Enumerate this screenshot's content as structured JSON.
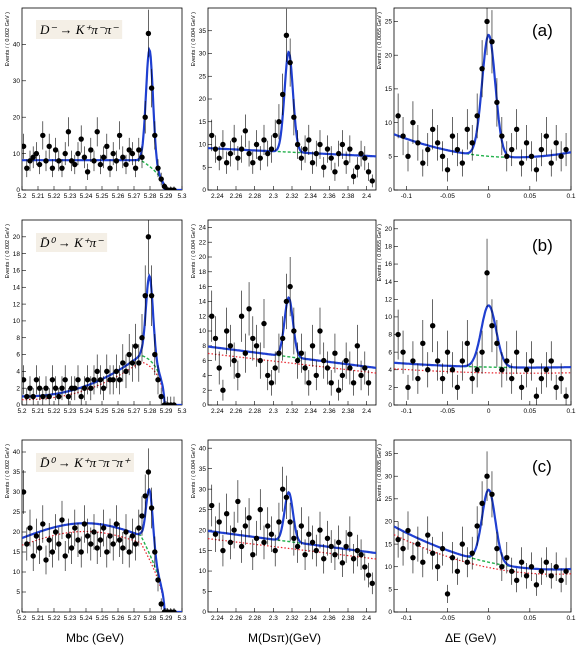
{
  "columns": [
    {
      "xlabel": "Mbc (GeV)",
      "main": "M",
      "sub": "bc",
      "rest": " (GeV)",
      "xlim": [
        5.2,
        5.3
      ],
      "ticks": [
        5.2,
        5.21,
        5.22,
        5.23,
        5.24,
        5.25,
        5.26,
        5.27,
        5.28,
        5.29,
        5.3
      ],
      "tick_labels": [
        "5.2",
        "5.21",
        "5.22",
        "5.23",
        "5.24",
        "5.25",
        "5.26",
        "5.27",
        "5.28",
        "5.29",
        "5.3"
      ]
    },
    {
      "xlabel": "M(Dsπ)(GeV)",
      "main": "M(D",
      "sub": "s",
      "rest": "π )(GeV)",
      "xlim": [
        2.23,
        2.41
      ],
      "ticks": [
        2.24,
        2.26,
        2.28,
        2.3,
        2.32,
        2.34,
        2.36,
        2.38,
        2.4
      ],
      "tick_labels": [
        "2.24",
        "2.26",
        "2.28",
        "2.3",
        "2.32",
        "2.34",
        "2.36",
        "2.38",
        "2.4"
      ]
    },
    {
      "xlabel": "ΔE (GeV)",
      "main": "ΔE (GeV)",
      "sub": "",
      "rest": "",
      "xlim": [
        -0.115,
        0.1
      ],
      "ticks": [
        -0.1,
        -0.05,
        0,
        0.05,
        0.1
      ],
      "tick_labels": [
        "-0.1",
        "-0.05",
        "0",
        "0.05",
        "0.1"
      ]
    }
  ],
  "rows": [
    {
      "letter": "(a)",
      "decay": "D⁻ → K⁺π⁻π⁻",
      "ylabels": [
        "Events / ( 0.002 GeV )",
        "Events / ( 0.004 GeV )",
        "Events / ( 0.0055 GeV )"
      ]
    },
    {
      "letter": "(b)",
      "decay": "D̄⁰ → K⁺π⁻",
      "ylabels": [
        "Events / ( 0.002 GeV )",
        "Events / ( 0.004 GeV )",
        "Events / ( 0.0055 GeV )"
      ]
    },
    {
      "letter": "(c)",
      "decay": "D̄⁰ → K⁺π⁻π⁻π⁺",
      "ylabels": [
        "Events / ( 0.002 GeV )",
        "Events / ( 0.004 GeV )",
        "Events / ( 0.0035 GeV )"
      ]
    }
  ],
  "colors": {
    "signal_fit": "#1f3fd1",
    "background_fit": "#22b14c",
    "background_2": "#e8202a",
    "data": "#000000"
  },
  "chart_data": [
    {
      "type": "scatter",
      "row": 0,
      "col": 0,
      "ylim": [
        0,
        50
      ],
      "yticks": [
        0,
        10,
        20,
        30,
        40
      ],
      "x": [
        5.201,
        5.203,
        5.205,
        5.207,
        5.209,
        5.211,
        5.213,
        5.215,
        5.217,
        5.219,
        5.221,
        5.223,
        5.225,
        5.227,
        5.229,
        5.231,
        5.233,
        5.235,
        5.237,
        5.239,
        5.241,
        5.243,
        5.245,
        5.247,
        5.249,
        5.251,
        5.253,
        5.255,
        5.257,
        5.259,
        5.261,
        5.263,
        5.265,
        5.267,
        5.269,
        5.271,
        5.273,
        5.275,
        5.277,
        5.279,
        5.281,
        5.283,
        5.285,
        5.287,
        5.289,
        5.291,
        5.293,
        5.295
      ],
      "y": [
        12,
        6,
        8,
        9,
        10,
        7,
        15,
        8,
        12,
        6,
        11,
        8,
        6,
        10,
        16,
        8,
        7,
        10,
        14,
        9,
        5,
        11,
        8,
        16,
        7,
        9,
        12,
        6,
        10,
        8,
        15,
        9,
        7,
        11,
        10,
        6,
        11,
        9,
        20,
        43,
        28,
        15,
        6,
        3,
        1,
        0,
        0,
        0
      ],
      "fit": {
        "kind": "mbc",
        "A": 32,
        "mu": 5.2797,
        "sigma": 0.0022,
        "bg": 8.2,
        "x0": 5.289
      },
      "bgfit": {
        "kind": "argus",
        "bg": 8.2,
        "x0": 5.289
      }
    },
    {
      "type": "scatter",
      "row": 0,
      "col": 1,
      "ylim": [
        0,
        40
      ],
      "yticks": [
        0,
        5,
        10,
        15,
        20,
        25,
        30,
        35
      ],
      "x": [
        2.234,
        2.238,
        2.242,
        2.246,
        2.25,
        2.254,
        2.258,
        2.262,
        2.266,
        2.27,
        2.274,
        2.278,
        2.282,
        2.286,
        2.29,
        2.294,
        2.298,
        2.302,
        2.306,
        2.31,
        2.314,
        2.318,
        2.322,
        2.326,
        2.33,
        2.334,
        2.338,
        2.342,
        2.346,
        2.35,
        2.354,
        2.358,
        2.362,
        2.366,
        2.37,
        2.374,
        2.378,
        2.382,
        2.386,
        2.39,
        2.394,
        2.398,
        2.402,
        2.406
      ],
      "y": [
        12,
        9,
        7,
        10,
        6,
        8,
        11,
        7,
        9,
        13,
        8,
        6,
        10,
        7,
        11,
        8,
        9,
        12,
        15,
        21,
        34,
        28,
        16,
        10,
        7,
        9,
        11,
        6,
        8,
        10,
        5,
        9,
        7,
        4,
        8,
        10,
        6,
        9,
        3,
        5,
        8,
        7,
        4,
        2
      ],
      "fit": {
        "kind": "lin",
        "A": 22,
        "mu": 2.3165,
        "sigma": 0.0045,
        "a": 9.2,
        "b": -10
      },
      "bgfit": {
        "kind": "lin",
        "a": 9.2,
        "b": -10
      }
    },
    {
      "type": "scatter",
      "row": 0,
      "col": 2,
      "ylim": [
        0,
        27
      ],
      "yticks": [
        0,
        5,
        10,
        15,
        20,
        25
      ],
      "x": [
        -0.11,
        -0.104,
        -0.098,
        -0.092,
        -0.086,
        -0.08,
        -0.074,
        -0.068,
        -0.062,
        -0.056,
        -0.05,
        -0.044,
        -0.038,
        -0.032,
        -0.026,
        -0.02,
        -0.014,
        -0.008,
        -0.002,
        0.004,
        0.01,
        0.016,
        0.022,
        0.028,
        0.034,
        0.04,
        0.046,
        0.052,
        0.058,
        0.064,
        0.07,
        0.076,
        0.082,
        0.088,
        0.094
      ],
      "y": [
        11,
        8,
        5,
        10,
        7,
        4,
        6,
        9,
        7,
        5,
        3,
        8,
        6,
        4,
        9,
        7,
        11,
        18,
        25,
        22,
        13,
        8,
        5,
        6,
        9,
        4,
        7,
        5,
        3,
        6,
        8,
        4,
        7,
        5,
        6
      ],
      "fit": {
        "kind": "poly",
        "A": 18,
        "mu": 0.0,
        "sigma": 0.008,
        "c0": 5.0,
        "c1": -10,
        "c2": 160
      },
      "bgfit": {
        "kind": "poly",
        "c0": 5.0,
        "c1": -10,
        "c2": 160
      }
    },
    {
      "type": "scatter",
      "row": 1,
      "col": 0,
      "ylim": [
        0,
        22
      ],
      "yticks": [
        0,
        2,
        4,
        6,
        8,
        10,
        12,
        14,
        16,
        18,
        20
      ],
      "x": [
        5.201,
        5.203,
        5.205,
        5.207,
        5.209,
        5.211,
        5.213,
        5.215,
        5.217,
        5.219,
        5.221,
        5.223,
        5.225,
        5.227,
        5.229,
        5.231,
        5.233,
        5.235,
        5.237,
        5.239,
        5.241,
        5.243,
        5.245,
        5.247,
        5.249,
        5.251,
        5.253,
        5.255,
        5.257,
        5.259,
        5.261,
        5.263,
        5.265,
        5.267,
        5.269,
        5.271,
        5.273,
        5.275,
        5.277,
        5.279,
        5.281,
        5.283,
        5.285,
        5.287,
        5.289,
        5.291,
        5.293,
        5.295
      ],
      "y": [
        3,
        1,
        2,
        1,
        3,
        2,
        1,
        2,
        1,
        3,
        2,
        1,
        2,
        3,
        1,
        2,
        2,
        3,
        1,
        2,
        3,
        2,
        3,
        4,
        3,
        2,
        4,
        3,
        3,
        4,
        3,
        5,
        4,
        6,
        5,
        7,
        5,
        8,
        13,
        20,
        13,
        6,
        3,
        1,
        0,
        0,
        0,
        0
      ],
      "fit": {
        "kind": "mbc2",
        "A": 10,
        "mu": 5.2797,
        "sigma": 0.0022,
        "bg": 6.8,
        "x0": 5.289
      },
      "bgfit": {
        "kind": "argus2",
        "bg": 6.8,
        "x0": 5.289
      }
    },
    {
      "type": "scatter",
      "row": 1,
      "col": 1,
      "ylim": [
        0,
        25
      ],
      "yticks": [
        0,
        2,
        4,
        6,
        8,
        10,
        12,
        14,
        16,
        18,
        20,
        22,
        24
      ],
      "x": [
        2.234,
        2.238,
        2.242,
        2.246,
        2.25,
        2.254,
        2.258,
        2.262,
        2.266,
        2.27,
        2.274,
        2.278,
        2.282,
        2.286,
        2.29,
        2.294,
        2.298,
        2.302,
        2.306,
        2.31,
        2.314,
        2.318,
        2.322,
        2.326,
        2.33,
        2.334,
        2.338,
        2.342,
        2.346,
        2.35,
        2.354,
        2.358,
        2.362,
        2.366,
        2.37,
        2.374,
        2.378,
        2.382,
        2.386,
        2.39,
        2.394,
        2.398,
        2.402
      ],
      "y": [
        12,
        9,
        5,
        2,
        10,
        8,
        6,
        4,
        12,
        7,
        13,
        9,
        8,
        6,
        11,
        4,
        3,
        5,
        7,
        9,
        14,
        16,
        10,
        6,
        7,
        5,
        3,
        8,
        4,
        10,
        6,
        5,
        3,
        7,
        2,
        4,
        6,
        5,
        3,
        8,
        4,
        5,
        3
      ],
      "fit": {
        "kind": "lin",
        "A": 8,
        "mu": 2.3165,
        "sigma": 0.0045,
        "a": 7.9,
        "b": -16
      },
      "bgfit": {
        "kind": "lin",
        "a": 7.9,
        "b": -16
      }
    },
    {
      "type": "scatter",
      "row": 1,
      "col": 2,
      "ylim": [
        0,
        21
      ],
      "yticks": [
        0,
        2,
        4,
        6,
        8,
        10,
        12,
        14,
        16,
        18,
        20
      ],
      "x": [
        -0.11,
        -0.104,
        -0.098,
        -0.092,
        -0.086,
        -0.08,
        -0.074,
        -0.068,
        -0.062,
        -0.056,
        -0.05,
        -0.044,
        -0.038,
        -0.032,
        -0.026,
        -0.02,
        -0.014,
        -0.008,
        -0.002,
        0.004,
        0.01,
        0.016,
        0.022,
        0.028,
        0.034,
        0.04,
        0.046,
        0.052,
        0.058,
        0.064,
        0.07,
        0.076,
        0.082,
        0.088,
        0.094
      ],
      "y": [
        8,
        6,
        2,
        5,
        3,
        7,
        4,
        9,
        5,
        3,
        6,
        4,
        2,
        5,
        7,
        3,
        4,
        6,
        15,
        9,
        7,
        4,
        5,
        3,
        6,
        2,
        4,
        5,
        1,
        3,
        4,
        5,
        2,
        3,
        1
      ],
      "fit": {
        "kind": "poly",
        "A": 7,
        "mu": 0.0,
        "sigma": 0.009,
        "c0": 4.3,
        "c1": -2,
        "c2": 20
      },
      "bgfit": {
        "kind": "poly",
        "c0": 4.3,
        "c1": -2,
        "c2": 20
      }
    },
    {
      "type": "scatter",
      "row": 2,
      "col": 0,
      "ylim": [
        0,
        43
      ],
      "yticks": [
        0,
        5,
        10,
        15,
        20,
        25,
        30,
        35,
        40
      ],
      "x": [
        5.201,
        5.203,
        5.205,
        5.207,
        5.209,
        5.211,
        5.213,
        5.215,
        5.217,
        5.219,
        5.221,
        5.223,
        5.225,
        5.227,
        5.229,
        5.231,
        5.233,
        5.235,
        5.237,
        5.239,
        5.241,
        5.243,
        5.245,
        5.247,
        5.249,
        5.251,
        5.253,
        5.255,
        5.257,
        5.259,
        5.261,
        5.263,
        5.265,
        5.267,
        5.269,
        5.271,
        5.273,
        5.275,
        5.277,
        5.279,
        5.281,
        5.283,
        5.285,
        5.287,
        5.289,
        5.291,
        5.293,
        5.295
      ],
      "y": [
        30,
        17,
        21,
        14,
        19,
        16,
        22,
        13,
        18,
        15,
        20,
        17,
        23,
        14,
        19,
        16,
        21,
        18,
        15,
        22,
        19,
        17,
        20,
        16,
        18,
        21,
        15,
        19,
        17,
        22,
        18,
        16,
        20,
        15,
        19,
        17,
        21,
        24,
        29,
        35,
        26,
        15,
        8,
        2,
        0,
        0,
        0,
        0
      ],
      "fit": {
        "kind": "mbc3",
        "A": 16,
        "mu": 5.2797,
        "sigma": 0.0022,
        "bg": 18.5,
        "x0": 5.289
      },
      "bgfit": {
        "kind": "argus3",
        "bg": 18.5,
        "x0": 5.289
      }
    },
    {
      "type": "scatter",
      "row": 2,
      "col": 1,
      "ylim": [
        0,
        42
      ],
      "yticks": [
        0,
        5,
        10,
        15,
        20,
        25,
        30,
        35,
        40
      ],
      "x": [
        2.234,
        2.238,
        2.242,
        2.246,
        2.25,
        2.254,
        2.258,
        2.262,
        2.266,
        2.27,
        2.274,
        2.278,
        2.282,
        2.286,
        2.29,
        2.294,
        2.298,
        2.302,
        2.306,
        2.31,
        2.314,
        2.318,
        2.322,
        2.326,
        2.33,
        2.334,
        2.338,
        2.342,
        2.346,
        2.35,
        2.354,
        2.358,
        2.362,
        2.366,
        2.37,
        2.374,
        2.378,
        2.382,
        2.386,
        2.39,
        2.394,
        2.398,
        2.402,
        2.406
      ],
      "y": [
        26,
        19,
        22,
        15,
        24,
        17,
        20,
        27,
        16,
        21,
        23,
        14,
        18,
        25,
        17,
        21,
        19,
        15,
        22,
        30,
        28,
        22,
        18,
        16,
        21,
        14,
        19,
        17,
        15,
        20,
        13,
        18,
        16,
        14,
        17,
        12,
        16,
        19,
        13,
        15,
        14,
        11,
        9,
        7
      ],
      "fit": {
        "kind": "lin",
        "A": 12,
        "mu": 2.3165,
        "sigma": 0.0045,
        "a": 19.8,
        "b": -30
      },
      "bgfit": {
        "kind": "lin",
        "a": 19.8,
        "b": -30
      }
    },
    {
      "type": "scatter",
      "row": 2,
      "col": 2,
      "ylim": [
        0,
        38
      ],
      "yticks": [
        0,
        5,
        10,
        15,
        20,
        25,
        30,
        35
      ],
      "x": [
        -0.11,
        -0.104,
        -0.098,
        -0.092,
        -0.086,
        -0.08,
        -0.074,
        -0.068,
        -0.062,
        -0.056,
        -0.05,
        -0.044,
        -0.038,
        -0.032,
        -0.026,
        -0.02,
        -0.014,
        -0.008,
        -0.002,
        0.004,
        0.01,
        0.016,
        0.022,
        0.028,
        0.034,
        0.04,
        0.046,
        0.052,
        0.058,
        0.064,
        0.07,
        0.076,
        0.082,
        0.088,
        0.094
      ],
      "y": [
        16,
        14,
        18,
        12,
        15,
        11,
        17,
        13,
        10,
        14,
        4,
        12,
        9,
        15,
        11,
        13,
        19,
        24,
        30,
        26,
        14,
        10,
        12,
        9,
        7,
        11,
        8,
        10,
        6,
        9,
        11,
        8,
        10,
        7,
        9
      ],
      "fit": {
        "kind": "poly",
        "A": 16,
        "mu": 0.0,
        "sigma": 0.008,
        "c0": 11.0,
        "c1": -40,
        "c2": 250
      },
      "bgfit": {
        "kind": "poly",
        "c0": 11.0,
        "c1": -40,
        "c2": 250
      }
    }
  ]
}
